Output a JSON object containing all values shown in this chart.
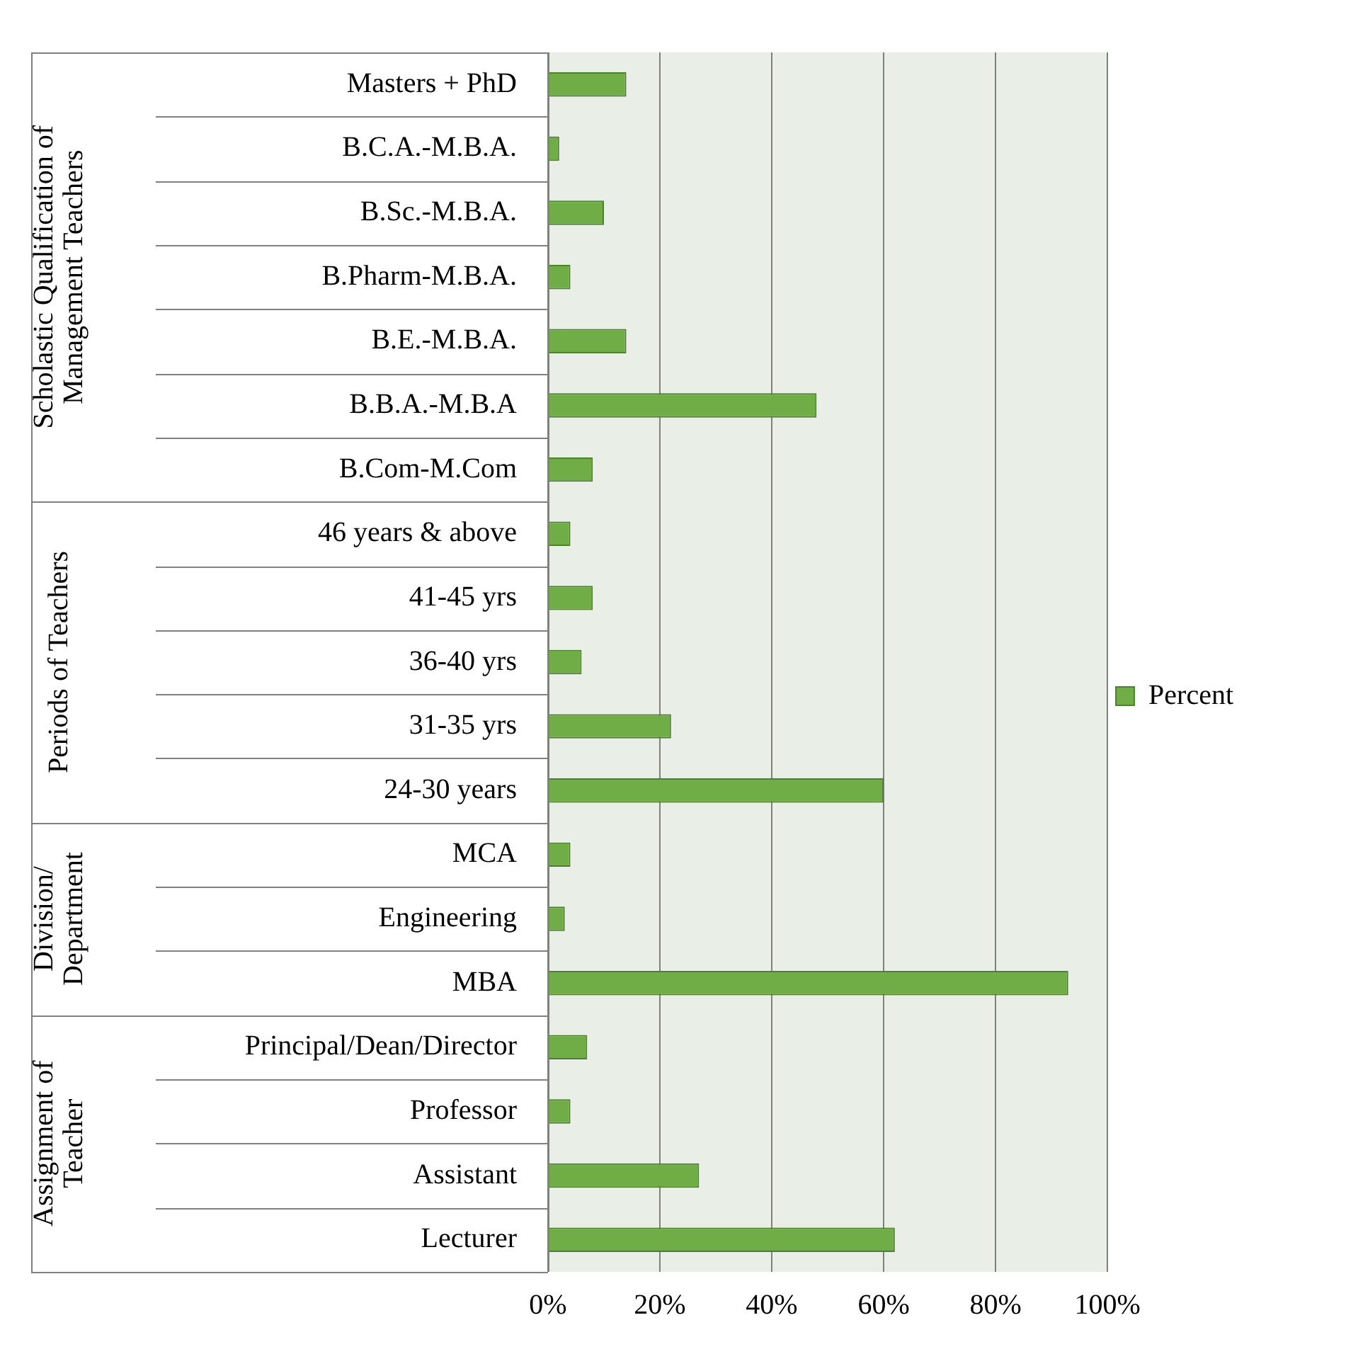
{
  "chart_data": {
    "type": "bar",
    "orientation": "horizontal",
    "categories": [
      "Masters + PhD",
      "B.C.A.-M.B.A.",
      "B.Sc.-M.B.A.",
      "B.Pharm-M.B.A.",
      "B.E.-M.B.A.",
      "B.B.A.-M.B.A",
      "B.Com-M.Com",
      "46 years & above",
      "41-45 yrs",
      "36-40 yrs",
      "31-35 yrs",
      "24-30 years",
      "MCA",
      "Engineering",
      "MBA",
      "Principal/Dean/Director",
      "Professor",
      "Assistant",
      "Lecturer"
    ],
    "series": [
      {
        "name": "Percent",
        "color": "#70ad47",
        "values": [
          14,
          2,
          10,
          4,
          14,
          48,
          8,
          4,
          8,
          6,
          22,
          60,
          4,
          3,
          93,
          7,
          4,
          27,
          62
        ]
      }
    ],
    "xlim": [
      0,
      100
    ],
    "xticks": [
      {
        "value": 0,
        "label": "0%"
      },
      {
        "value": 20,
        "label": "20%"
      },
      {
        "value": 40,
        "label": "40%"
      },
      {
        "value": 60,
        "label": "60%"
      },
      {
        "value": 80,
        "label": "80%"
      },
      {
        "value": 100,
        "label": "100%"
      }
    ],
    "annotations": [
      "Scholastic Qualification of Management Teachers",
      "Periods of Teachers",
      "Division/Department",
      "Assignment of Teacher"
    ],
    "grid": "x",
    "legend": "right"
  }
}
